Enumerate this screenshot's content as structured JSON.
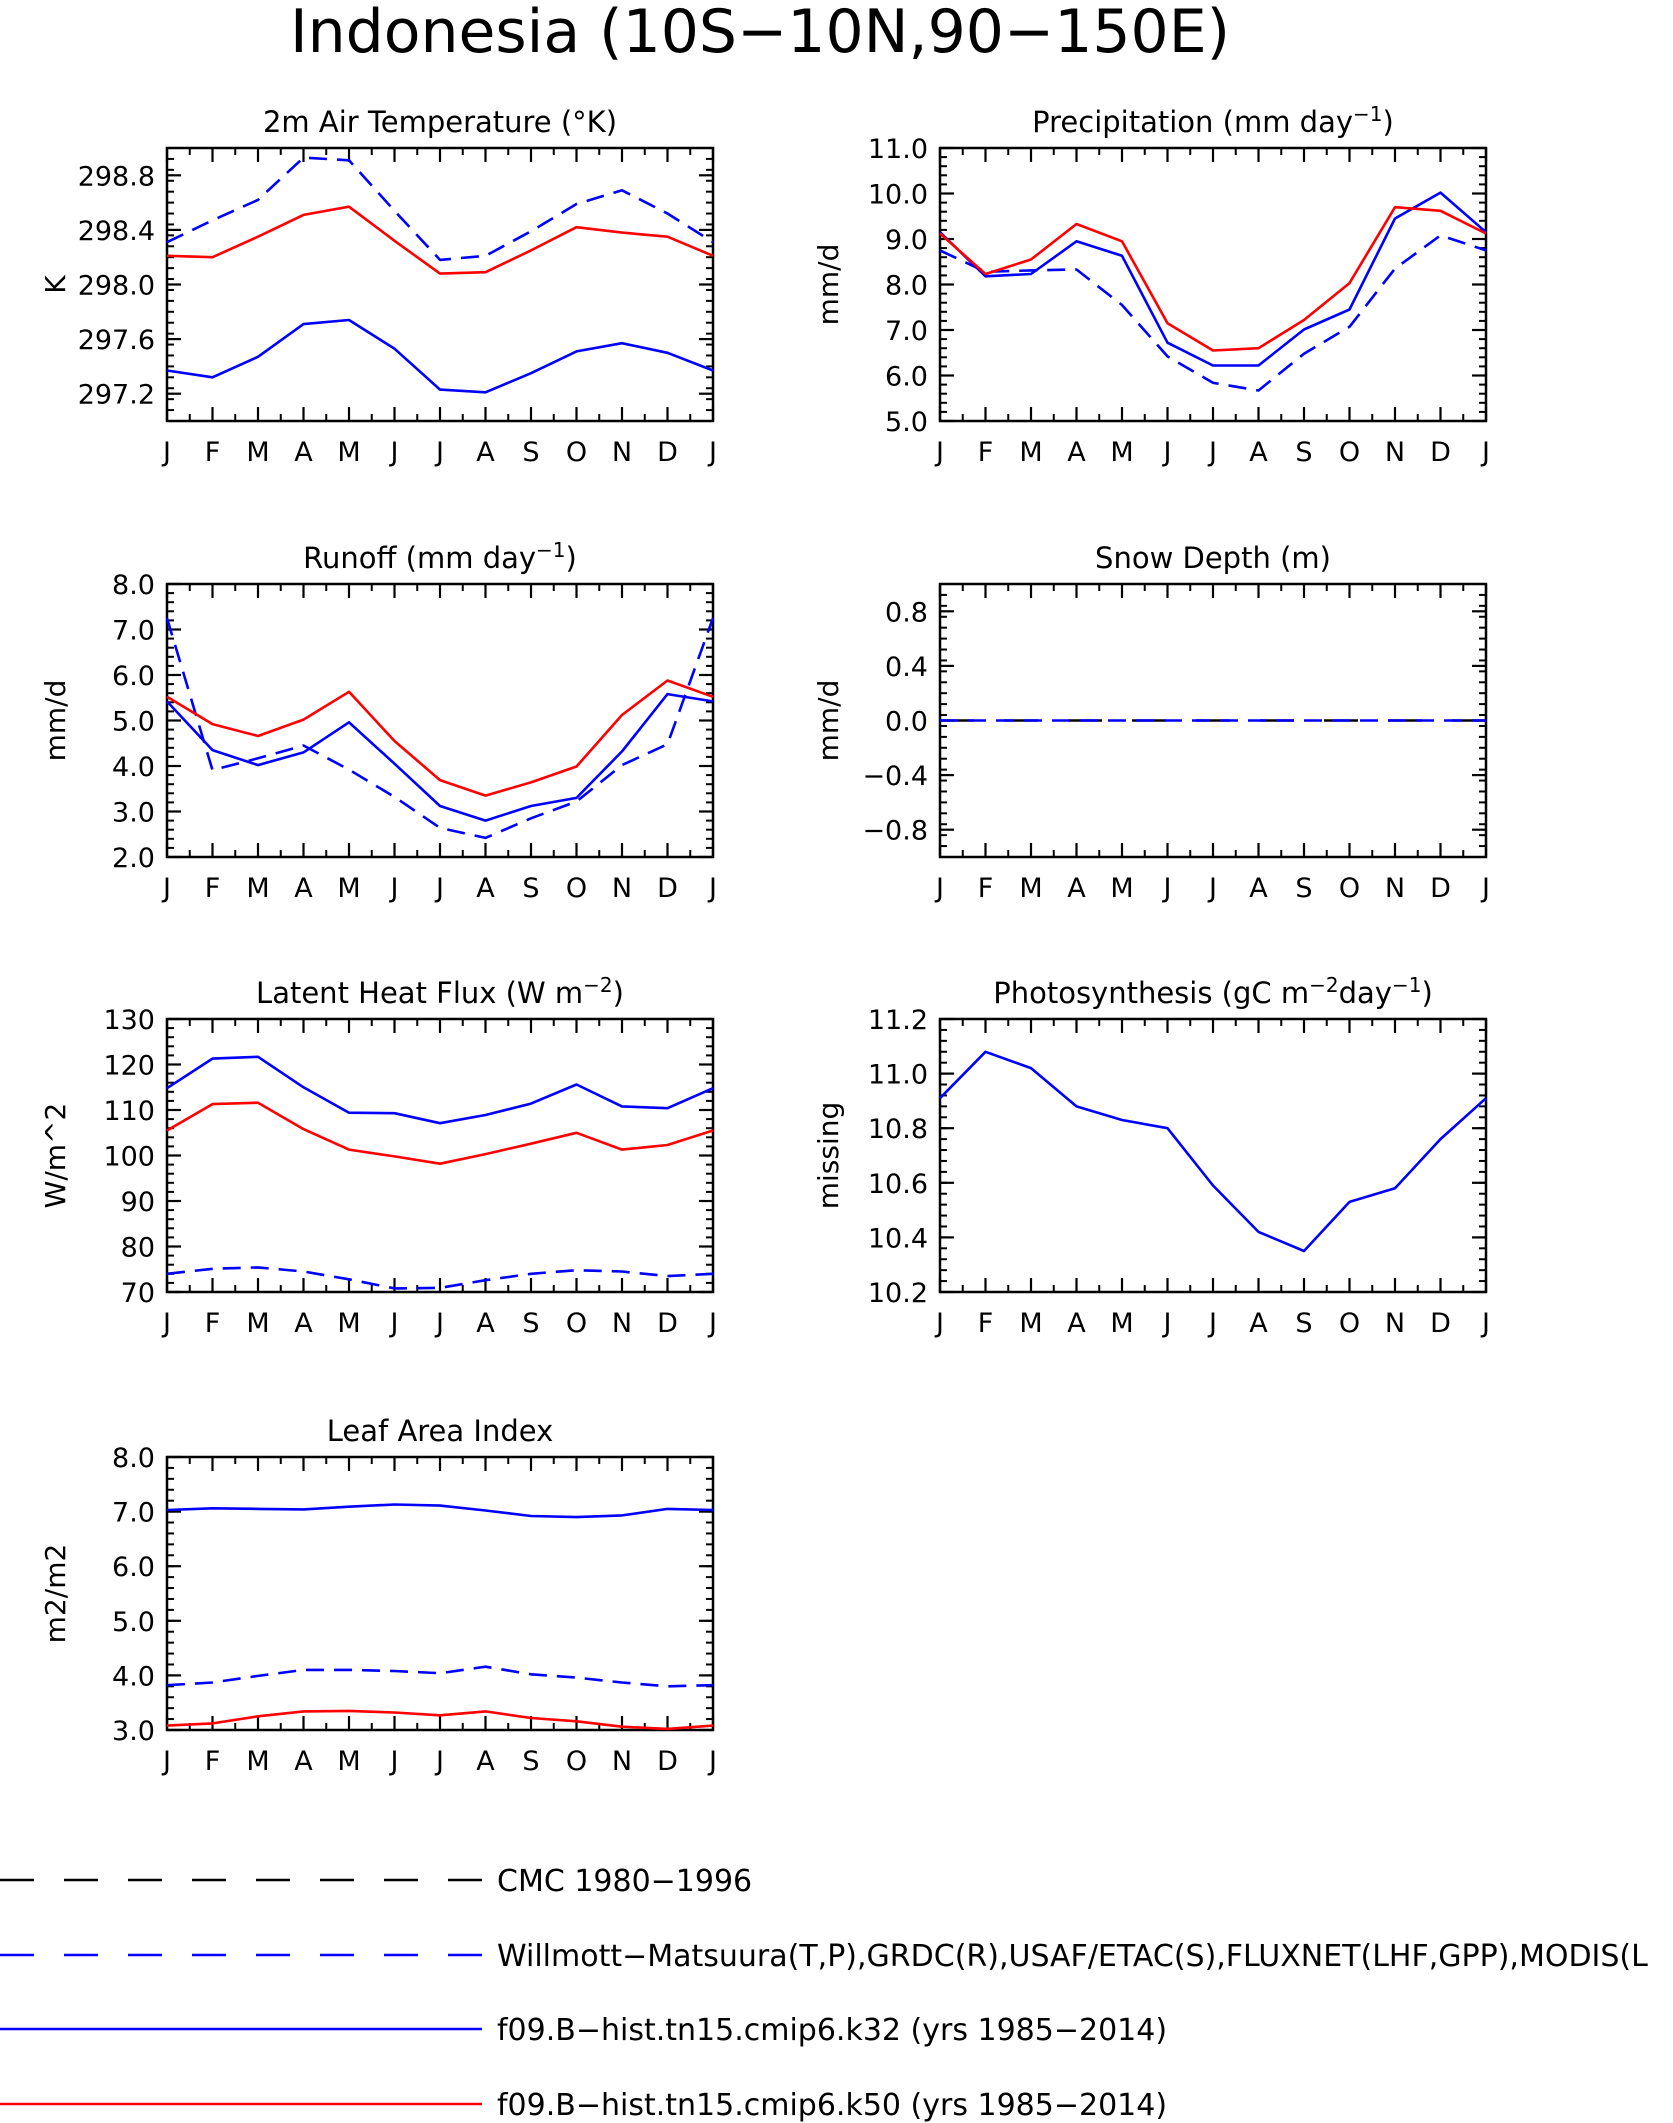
{
  "title": "Indonesia (10S−10N,90−150E)",
  "month_labels": [
    "J",
    "F",
    "M",
    "A",
    "M",
    "J",
    "J",
    "A",
    "S",
    "O",
    "N",
    "D",
    "J"
  ],
  "colors": {
    "cmc": "#000000",
    "obs": "#0000ff",
    "k32": "#0000ff",
    "k50": "#ff0000"
  },
  "legend": [
    {
      "id": "cmc",
      "label": "CMC 1980−1996",
      "color": "#000000",
      "dashed": true
    },
    {
      "id": "obs",
      "label": "Willmott−Matsuura(T,P),GRDC(R),USAF/ETAC(S),FLUXNET(LHF,GPP),MODIS(L",
      "color": "#0000ff",
      "dashed": true
    },
    {
      "id": "k32",
      "label": "f09.B−hist.tn15.cmip6.k32 (yrs 1985−2014)",
      "color": "#0000ff",
      "dashed": false
    },
    {
      "id": "k50",
      "label": "f09.B−hist.tn15.cmip6.k50 (yrs 1985−2014)",
      "color": "#ff0000",
      "dashed": false
    }
  ],
  "chart_data": [
    {
      "type": "line",
      "title": "2m Air Temperature (°K)",
      "title_main": "2m Air Temperature (°K)",
      "title_sup": "",
      "ylabel": "K",
      "ylim": [
        297.0,
        299.0
      ],
      "yticks": [
        297.2,
        297.6,
        298.0,
        298.4,
        298.8
      ],
      "ytick_labels": [
        "297.2",
        "297.6",
        "298.0",
        "298.4",
        "298.8"
      ],
      "x": [
        "J",
        "F",
        "M",
        "A",
        "M",
        "J",
        "J",
        "A",
        "S",
        "O",
        "N",
        "D",
        "J"
      ],
      "series": [
        {
          "id": "obs",
          "values": [
            298.31,
            298.47,
            298.62,
            298.93,
            298.91,
            298.54,
            298.18,
            298.21,
            298.39,
            298.59,
            298.69,
            298.52,
            298.31
          ]
        },
        {
          "id": "k32",
          "values": [
            297.37,
            297.32,
            297.47,
            297.71,
            297.74,
            297.53,
            297.23,
            297.21,
            297.35,
            297.51,
            297.57,
            297.5,
            297.37
          ]
        },
        {
          "id": "k50",
          "values": [
            298.21,
            298.2,
            298.35,
            298.51,
            298.57,
            298.32,
            298.08,
            298.09,
            298.25,
            298.42,
            298.38,
            298.35,
            298.21
          ]
        }
      ]
    },
    {
      "type": "line",
      "title": "Precipitation (mm day−1)",
      "title_main": "Precipitation (mm day",
      "title_sup": "−1",
      "ylabel": "mm/d",
      "ylim": [
        5.0,
        11.0
      ],
      "yticks": [
        5,
        6,
        7,
        8,
        9,
        10,
        11
      ],
      "ytick_labels": [
        "5.0",
        "6.0",
        "7.0",
        "8.0",
        "9.0",
        "10.0",
        "11.0"
      ],
      "x": [
        "J",
        "F",
        "M",
        "A",
        "M",
        "J",
        "J",
        "A",
        "S",
        "O",
        "N",
        "D",
        "J"
      ],
      "series": [
        {
          "id": "obs",
          "values": [
            8.75,
            8.28,
            8.31,
            8.33,
            7.55,
            6.42,
            5.84,
            5.67,
            6.48,
            7.07,
            8.35,
            9.08,
            8.75
          ]
        },
        {
          "id": "k32",
          "values": [
            9.15,
            8.18,
            8.23,
            8.95,
            8.63,
            6.72,
            6.22,
            6.22,
            7.01,
            7.45,
            9.45,
            10.02,
            9.15
          ]
        },
        {
          "id": "k50",
          "values": [
            9.12,
            8.23,
            8.55,
            9.33,
            8.95,
            7.15,
            6.55,
            6.6,
            7.22,
            8.03,
            9.7,
            9.62,
            9.12
          ]
        }
      ]
    },
    {
      "type": "line",
      "title": "Runoff (mm day−1)",
      "title_main": "Runoff (mm day",
      "title_sup": "−1",
      "ylabel": "mm/d",
      "ylim": [
        2.0,
        8.0
      ],
      "yticks": [
        2,
        3,
        4,
        5,
        6,
        7,
        8
      ],
      "ytick_labels": [
        "2.0",
        "3.0",
        "4.0",
        "5.0",
        "6.0",
        "7.0",
        "8.0"
      ],
      "x": [
        "J",
        "F",
        "M",
        "A",
        "M",
        "J",
        "J",
        "A",
        "S",
        "O",
        "N",
        "D",
        "J"
      ],
      "series": [
        {
          "id": "obs",
          "values": [
            7.25,
            3.91,
            4.17,
            4.45,
            3.92,
            3.32,
            2.64,
            2.42,
            2.85,
            3.22,
            4.02,
            4.48,
            7.25
          ]
        },
        {
          "id": "k32",
          "values": [
            5.42,
            4.35,
            4.02,
            4.3,
            4.96,
            4.05,
            3.12,
            2.8,
            3.12,
            3.3,
            4.32,
            5.58,
            5.42
          ]
        },
        {
          "id": "k50",
          "values": [
            5.52,
            4.92,
            4.66,
            5.02,
            5.63,
            4.55,
            3.69,
            3.35,
            3.64,
            3.99,
            5.12,
            5.88,
            5.52
          ]
        }
      ]
    },
    {
      "type": "line",
      "title": "Snow Depth (m)",
      "title_main": "Snow Depth (m)",
      "title_sup": "",
      "ylabel": "mm/d",
      "ylim": [
        -1.0,
        1.0
      ],
      "yticks": [
        -0.8,
        -0.4,
        0.0,
        0.4,
        0.8
      ],
      "ytick_labels": [
        "−0.8",
        "−0.4",
        "0.0",
        "0.4",
        "0.8"
      ],
      "x": [
        "J",
        "F",
        "M",
        "A",
        "M",
        "J",
        "J",
        "A",
        "S",
        "O",
        "N",
        "D",
        "J"
      ],
      "series": [
        {
          "id": "cmc",
          "values": [
            0,
            0,
            0,
            0,
            0,
            0,
            0,
            0,
            0,
            0,
            0,
            0,
            0
          ]
        },
        {
          "id": "obs",
          "values": [
            0,
            0,
            0,
            0,
            0,
            0,
            0,
            0,
            0,
            0,
            0,
            0,
            0
          ]
        }
      ]
    },
    {
      "type": "line",
      "title": "Latent Heat Flux (W m−2)",
      "title_main": "Latent Heat Flux (W m",
      "title_sup": "−2",
      "ylabel": "W/m^2",
      "ylim": [
        70,
        130
      ],
      "yticks": [
        70,
        80,
        90,
        100,
        110,
        120,
        130
      ],
      "ytick_labels": [
        "70",
        "80",
        "90",
        "100",
        "110",
        "120",
        "130"
      ],
      "x": [
        "J",
        "F",
        "M",
        "A",
        "M",
        "J",
        "J",
        "A",
        "S",
        "O",
        "N",
        "D",
        "J"
      ],
      "series": [
        {
          "id": "obs",
          "values": [
            74.0,
            75.1,
            75.4,
            74.5,
            72.8,
            70.8,
            70.9,
            72.6,
            74.0,
            74.8,
            74.5,
            73.5,
            74.0
          ]
        },
        {
          "id": "k32",
          "values": [
            114.8,
            121.3,
            121.7,
            115.0,
            109.4,
            109.3,
            107.1,
            108.9,
            111.4,
            115.6,
            110.8,
            110.4,
            114.8
          ]
        },
        {
          "id": "k50",
          "values": [
            105.5,
            111.3,
            111.6,
            105.8,
            101.3,
            99.8,
            98.2,
            100.3,
            102.6,
            105.0,
            101.3,
            102.3,
            105.5
          ]
        }
      ]
    },
    {
      "type": "line",
      "title": "Photosynthesis (gC m−2day−1)",
      "title_main": "Photosynthesis (gC m",
      "title_sup": "−2",
      "title_mid": "day",
      "title_sup2": "−1",
      "ylabel": "missing",
      "ylim": [
        10.2,
        11.2
      ],
      "yticks": [
        10.2,
        10.4,
        10.6,
        10.8,
        11.0,
        11.2
      ],
      "ytick_labels": [
        "10.2",
        "10.4",
        "10.6",
        "10.8",
        "11.0",
        "11.2"
      ],
      "x": [
        "J",
        "F",
        "M",
        "A",
        "M",
        "J",
        "J",
        "A",
        "S",
        "O",
        "N",
        "D",
        "J"
      ],
      "series": [
        {
          "id": "k32",
          "values": [
            10.91,
            11.08,
            11.02,
            10.88,
            10.83,
            10.8,
            10.59,
            10.42,
            10.35,
            10.53,
            10.58,
            10.76,
            10.91
          ]
        }
      ]
    },
    {
      "type": "line",
      "title": "Leaf Area Index",
      "title_main": "Leaf Area Index",
      "title_sup": "",
      "ylabel": "m2/m2",
      "ylim": [
        3.0,
        8.0
      ],
      "yticks": [
        3,
        4,
        5,
        6,
        7,
        8
      ],
      "ytick_labels": [
        "3.0",
        "4.0",
        "5.0",
        "6.0",
        "7.0",
        "8.0"
      ],
      "x": [
        "J",
        "F",
        "M",
        "A",
        "M",
        "J",
        "J",
        "A",
        "S",
        "O",
        "N",
        "D",
        "J"
      ],
      "series": [
        {
          "id": "obs",
          "values": [
            3.82,
            3.87,
            3.99,
            4.1,
            4.1,
            4.08,
            4.04,
            4.16,
            4.02,
            3.96,
            3.87,
            3.8,
            3.82
          ]
        },
        {
          "id": "k32",
          "values": [
            7.03,
            7.06,
            7.05,
            7.04,
            7.09,
            7.13,
            7.11,
            7.02,
            6.92,
            6.9,
            6.93,
            7.05,
            7.03
          ]
        },
        {
          "id": "k50",
          "values": [
            3.08,
            3.12,
            3.25,
            3.34,
            3.35,
            3.32,
            3.27,
            3.34,
            3.22,
            3.16,
            3.06,
            3.02,
            3.08
          ]
        }
      ]
    }
  ]
}
